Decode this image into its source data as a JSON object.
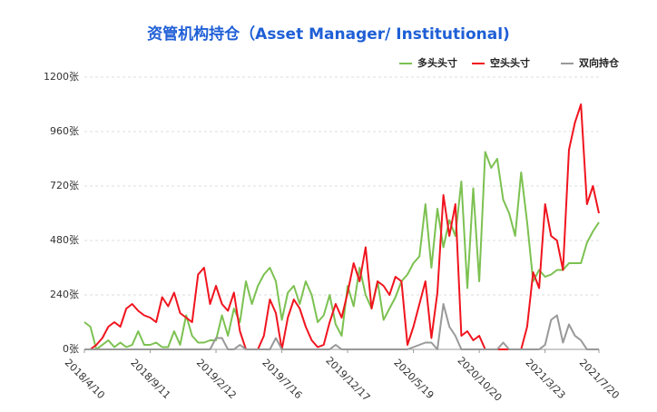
{
  "chart_data": {
    "type": "line",
    "title": "资管机构持仓（Asset Manager/ Institutional)",
    "categories": [
      "2018/4/10",
      null,
      null,
      null,
      null,
      null,
      null,
      null,
      null,
      null,
      null,
      "2018/9/11",
      null,
      null,
      null,
      null,
      null,
      null,
      null,
      null,
      null,
      null,
      "2019/2/12",
      null,
      null,
      null,
      null,
      null,
      null,
      null,
      null,
      null,
      null,
      "2019/7/16",
      null,
      null,
      null,
      null,
      null,
      null,
      null,
      null,
      null,
      null,
      "2019/12/17",
      null,
      null,
      null,
      null,
      null,
      null,
      null,
      null,
      null,
      null,
      "2020/5/19",
      null,
      null,
      null,
      null,
      null,
      null,
      null,
      null,
      null,
      null,
      "2020/10/20",
      null,
      null,
      null,
      null,
      null,
      null,
      null,
      null,
      null,
      null,
      "2021/3/23",
      null,
      null,
      null,
      null,
      null,
      null,
      null,
      null,
      "2021/7/20"
    ],
    "series": [
      {
        "name": "多头头寸",
        "color": "#7cc151",
        "values": [
          120,
          100,
          0,
          20,
          40,
          10,
          30,
          10,
          20,
          80,
          20,
          20,
          30,
          10,
          10,
          80,
          20,
          150,
          60,
          30,
          30,
          40,
          40,
          150,
          60,
          180,
          120,
          300,
          200,
          280,
          330,
          360,
          300,
          130,
          250,
          280,
          200,
          300,
          240,
          120,
          150,
          240,
          110,
          60,
          280,
          190,
          360,
          240,
          180,
          300,
          130,
          180,
          230,
          300,
          330,
          380,
          410,
          640,
          360,
          620,
          450,
          570,
          500,
          740,
          270,
          710,
          300,
          870,
          800,
          840,
          660,
          600,
          500,
          780,
          560,
          300,
          350,
          320,
          330,
          350,
          350,
          380,
          380,
          380,
          470,
          520,
          560
        ]
      },
      {
        "name": "空头头寸",
        "color": "#f0141e",
        "values": [
          0,
          0,
          20,
          50,
          100,
          120,
          100,
          180,
          200,
          170,
          150,
          140,
          120,
          230,
          190,
          250,
          160,
          140,
          120,
          330,
          360,
          200,
          280,
          200,
          170,
          250,
          80,
          0,
          0,
          0,
          60,
          220,
          160,
          0,
          140,
          220,
          180,
          100,
          40,
          10,
          20,
          120,
          200,
          140,
          250,
          380,
          300,
          450,
          180,
          300,
          280,
          240,
          320,
          300,
          20,
          100,
          200,
          300,
          50,
          250,
          680,
          500,
          640,
          60,
          80,
          40,
          60,
          0,
          0,
          0,
          0,
          0,
          0,
          0,
          100,
          340,
          270,
          640,
          500,
          480,
          350,
          880,
          1000,
          1080,
          640,
          720,
          600
        ]
      },
      {
        "name": "双向持仓",
        "color": "#999999",
        "values": [
          0,
          0,
          0,
          0,
          0,
          0,
          0,
          0,
          0,
          0,
          0,
          0,
          0,
          0,
          0,
          0,
          0,
          0,
          0,
          0,
          0,
          0,
          50,
          50,
          0,
          0,
          20,
          0,
          0,
          0,
          0,
          0,
          50,
          0,
          0,
          0,
          0,
          0,
          0,
          0,
          0,
          0,
          20,
          0,
          0,
          0,
          0,
          0,
          0,
          0,
          0,
          0,
          0,
          0,
          0,
          10,
          20,
          30,
          30,
          0,
          200,
          100,
          60,
          0,
          0,
          0,
          0,
          0,
          0,
          0,
          30,
          0,
          0,
          0,
          0,
          0,
          0,
          20,
          130,
          150,
          30,
          110,
          60,
          40,
          0,
          0,
          0
        ]
      }
    ],
    "ylim": [
      0,
      1200
    ],
    "yticks": [
      {
        "value": 0,
        "label": "0张"
      },
      {
        "value": 240,
        "label": "240张"
      },
      {
        "value": 480,
        "label": "480张"
      },
      {
        "value": 720,
        "label": "720张"
      },
      {
        "value": 960,
        "label": "960张"
      },
      {
        "value": 1200,
        "label": "1200张"
      }
    ],
    "grid": true
  }
}
